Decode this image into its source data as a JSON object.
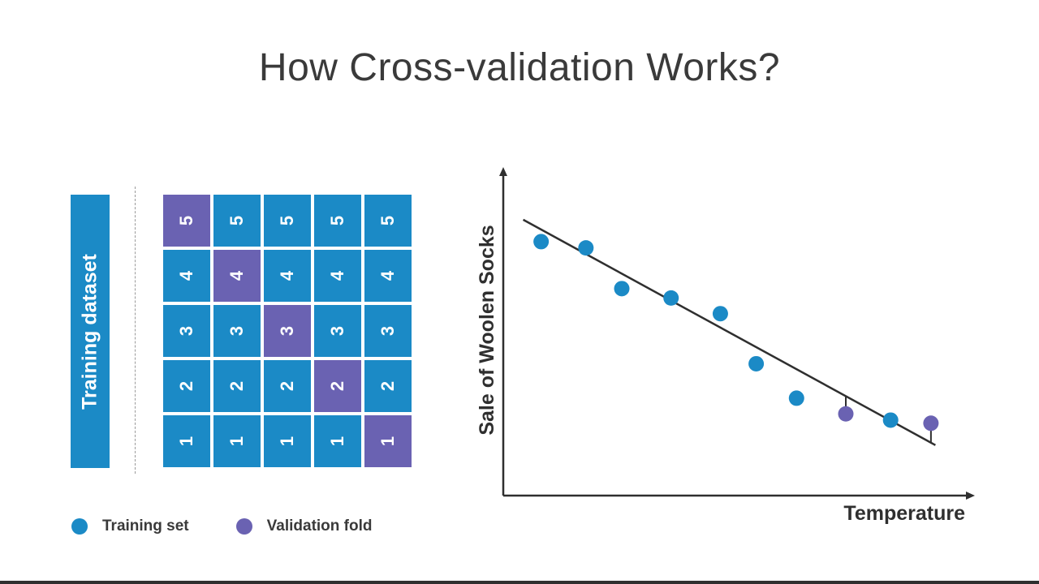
{
  "title": "How Cross-validation Works?",
  "dataset_label": "Training dataset",
  "folds": {
    "rows": [
      "5",
      "4",
      "3",
      "2",
      "1"
    ],
    "columns": 5,
    "validation_fold_by_column": [
      "5",
      "4",
      "3",
      "2",
      "1"
    ]
  },
  "legend": {
    "training": "Training set",
    "validation": "Validation fold"
  },
  "colors": {
    "training": "#1b8ac6",
    "validation": "#6a62b2",
    "text": "#3a3a3a",
    "axis": "#2f2f2f"
  },
  "chart_data": {
    "type": "scatter",
    "title": "",
    "xlabel": "Temperature",
    "ylabel": "Sale of Woolen Socks",
    "xlim": [
      0,
      100
    ],
    "ylim": [
      0,
      100
    ],
    "grid": false,
    "points": [
      {
        "x": 7,
        "y": 78,
        "set": "training"
      },
      {
        "x": 17,
        "y": 76,
        "set": "training"
      },
      {
        "x": 25,
        "y": 63,
        "set": "training"
      },
      {
        "x": 36,
        "y": 60,
        "set": "training"
      },
      {
        "x": 47,
        "y": 55,
        "set": "training"
      },
      {
        "x": 55,
        "y": 39,
        "set": "training"
      },
      {
        "x": 64,
        "y": 28,
        "set": "training"
      },
      {
        "x": 75,
        "y": 23,
        "set": "validation"
      },
      {
        "x": 85,
        "y": 21,
        "set": "training"
      },
      {
        "x": 94,
        "y": 20,
        "set": "validation"
      }
    ],
    "fit_line": {
      "x": [
        3,
        95
      ],
      "y": [
        85,
        13
      ]
    }
  }
}
